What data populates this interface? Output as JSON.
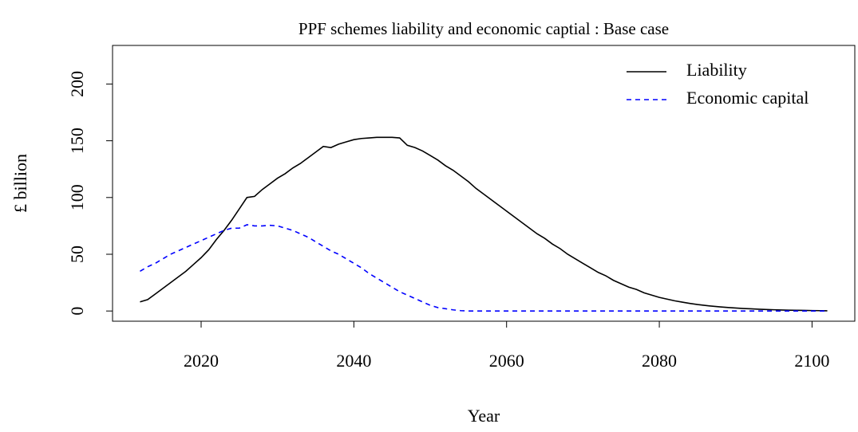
{
  "chart_data": {
    "type": "line",
    "title": "PPF schemes liability and economic captial : Base case",
    "x_label": "Year",
    "y_label": "£ billion",
    "x": [
      2012,
      2013,
      2014,
      2015,
      2016,
      2017,
      2018,
      2019,
      2020,
      2021,
      2022,
      2023,
      2024,
      2025,
      2026,
      2027,
      2028,
      2029,
      2030,
      2031,
      2032,
      2033,
      2034,
      2035,
      2036,
      2037,
      2038,
      2039,
      2040,
      2041,
      2042,
      2043,
      2044,
      2045,
      2046,
      2047,
      2048,
      2049,
      2050,
      2051,
      2052,
      2053,
      2054,
      2055,
      2056,
      2057,
      2058,
      2059,
      2060,
      2061,
      2062,
      2063,
      2064,
      2065,
      2066,
      2067,
      2068,
      2069,
      2070,
      2071,
      2072,
      2073,
      2074,
      2075,
      2076,
      2077,
      2078,
      2079,
      2080,
      2081,
      2082,
      2083,
      2084,
      2085,
      2086,
      2087,
      2088,
      2089,
      2090,
      2091,
      2092,
      2093,
      2094,
      2095,
      2096,
      2097,
      2098,
      2099,
      2100,
      2101,
      2102
    ],
    "series": [
      {
        "name": "Liability",
        "color": "#000000",
        "line_style": "solid",
        "values": [
          8,
          10,
          15,
          20,
          25,
          30,
          35,
          41,
          47,
          54,
          63,
          71,
          80,
          90,
          100,
          101,
          107,
          112,
          117,
          121,
          126,
          130,
          135,
          140,
          145,
          144,
          147,
          149,
          151,
          152,
          152.5,
          153,
          153,
          153,
          152.5,
          146,
          144,
          141,
          137,
          133,
          128,
          124,
          119,
          114,
          108,
          103,
          98,
          93,
          88,
          83,
          78,
          73,
          68,
          64,
          59,
          55,
          50,
          46,
          42,
          38,
          34,
          31,
          27,
          24,
          21,
          19,
          16,
          14,
          12,
          10.5,
          9,
          7.8,
          6.7,
          5.7,
          4.9,
          4.2,
          3.6,
          3.1,
          2.6,
          2.2,
          1.9,
          1.6,
          1.3,
          1.1,
          0.9,
          0.7,
          0.6,
          0.5,
          0.4,
          0.3,
          0.2
        ]
      },
      {
        "name": "Economic capital",
        "color": "#0000ff",
        "line_style": "dashed",
        "values": [
          35,
          39,
          42,
          46,
          50,
          53,
          56,
          59,
          62,
          65,
          68,
          71,
          73,
          73,
          76,
          75,
          75,
          75.5,
          75,
          73,
          71,
          68,
          65,
          61,
          57,
          53,
          50,
          46,
          42,
          38,
          33,
          29,
          25,
          21,
          17,
          14,
          11,
          8,
          5,
          3,
          2,
          1,
          0.3,
          0,
          0,
          0,
          0,
          0,
          0,
          0,
          0,
          0,
          0,
          0,
          0,
          0,
          0,
          0,
          0,
          0,
          0,
          0,
          0,
          0,
          0,
          0,
          0,
          0,
          0,
          0,
          0,
          0,
          0,
          0,
          0,
          0,
          0,
          0,
          0,
          0,
          0,
          0,
          0,
          0,
          0,
          0,
          0,
          0,
          0,
          0,
          0
        ]
      }
    ],
    "xlim": [
      2008.4,
      2105.6
    ],
    "xticks": [
      2020,
      2040,
      2060,
      2080,
      2100
    ],
    "ylim": [
      -9,
      234
    ],
    "yticks": [
      0,
      50,
      100,
      150,
      200
    ],
    "legend": "top-right",
    "grid": false
  }
}
